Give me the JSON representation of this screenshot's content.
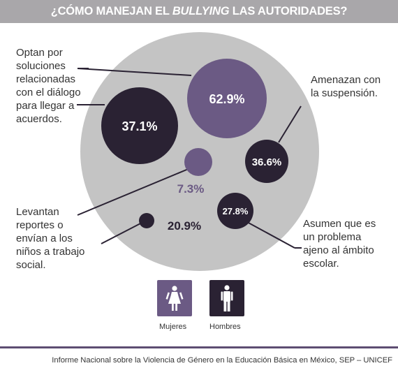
{
  "title": {
    "prefix": "¿CÓMO MANEJAN EL ",
    "emphasis": "BULLYING",
    "suffix": " LAS AUTORIDADES?"
  },
  "colors": {
    "mujeres": "#6b5a84",
    "hombres": "#2a2233",
    "background_circle": "#c4c4c4",
    "title_bar": "#a9a7aa",
    "footer_line": "#5e4d72"
  },
  "chart_data": {
    "type": "bubble",
    "title": "¿CÓMO MANEJAN EL BULLYING LAS AUTORIDADES?",
    "legend": [
      "Mujeres",
      "Hombres"
    ],
    "legend_placement": "bottom-center",
    "categories": [
      "Optan por soluciones relacionadas con el diálogo para llegar a acuerdos.",
      "Amenazan con la suspensión.",
      "Levantan reportes o envían a los niños a trabajo social.",
      "Asumen que es un problema ajeno al ámbito escolar."
    ],
    "series": [
      {
        "name": "Mujeres",
        "color": "#6b5a84",
        "values": [
          62.9,
          7.3
        ],
        "categories": [
          "Optan por soluciones relacionadas con el diálogo para llegar a acuerdos.",
          "Levantan reportes o envían a los niños a trabajo social."
        ]
      },
      {
        "name": "Hombres",
        "color": "#2a2233",
        "values": [
          37.1,
          36.6,
          27.8,
          20.9
        ],
        "categories": [
          "Optan por soluciones relacionadas con el diálogo para llegar a acuerdos.",
          "Amenazan con la suspensión.",
          "Asumen que es un problema ajeno al ámbito escolar.",
          "Levantan reportes o envían a los niños a trabajo social."
        ]
      }
    ],
    "bubbles": [
      {
        "value": 62.9,
        "label": "62.9%",
        "series": "Mujeres"
      },
      {
        "value": 37.1,
        "label": "37.1%",
        "series": "Hombres"
      },
      {
        "value": 36.6,
        "label": "36.6%",
        "series": "Hombres"
      },
      {
        "value": 27.8,
        "label": "27.8%",
        "series": "Hombres"
      },
      {
        "value": 7.3,
        "label": "7.3%",
        "series": "Mujeres"
      },
      {
        "value": 20.9,
        "label": "20.9%",
        "series": "Hombres"
      }
    ]
  },
  "annotations": {
    "dialogo": [
      "Optan por",
      "soluciones",
      "relacionadas",
      "con el diálogo",
      "para llegar a",
      "acuerdos."
    ],
    "suspension": [
      "Amenazan con",
      "la suspensión."
    ],
    "reportes": [
      "Levantan",
      "reportes o",
      "envían a los",
      "niños a trabajo",
      "social."
    ],
    "ajeno": [
      "Asumen que es",
      "un problema",
      "ajeno al ámbito",
      "escolar."
    ]
  },
  "legend_labels": {
    "mujeres": "Mujeres",
    "hombres": "Hombres"
  },
  "icons": {
    "mujeres": "female-figure-icon",
    "hombres": "male-figure-icon"
  },
  "source": "Informe Nacional sobre la Violencia de Género en la Educación Básica en México, SEP – UNICEF"
}
